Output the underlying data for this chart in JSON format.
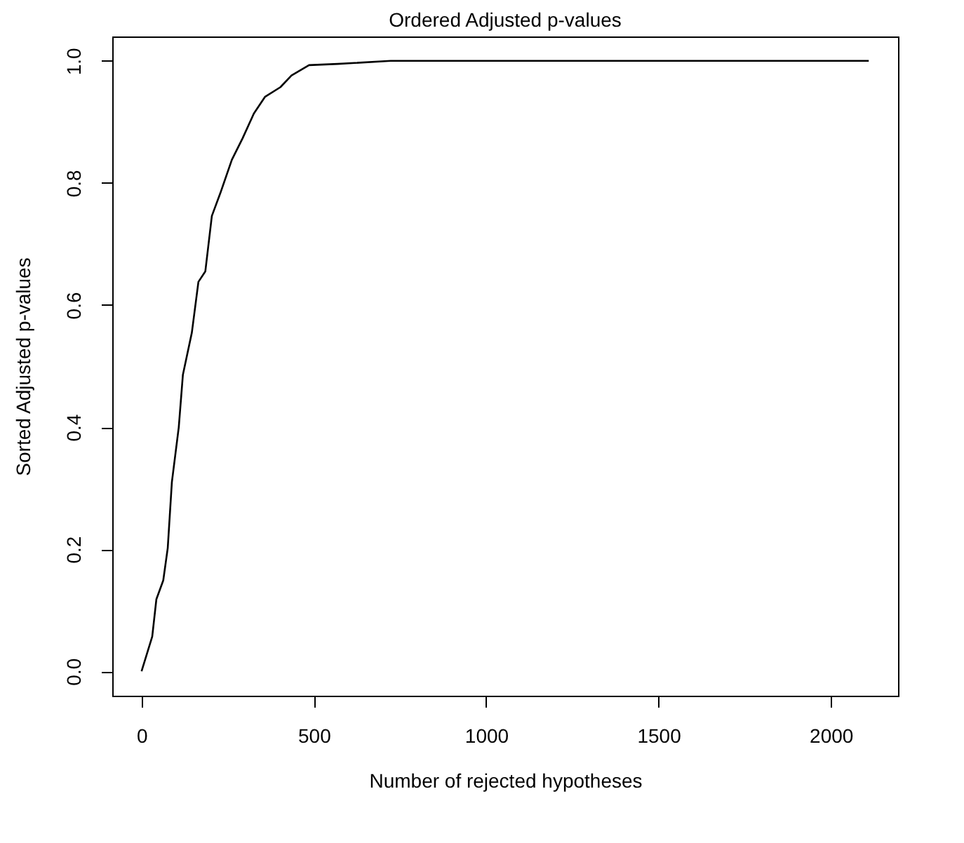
{
  "chart_data": {
    "type": "line",
    "title": "Ordered Adjusted p-values",
    "xlabel": "Number of rejected hypotheses",
    "ylabel": "Sorted Adjusted p-values",
    "series": [
      {
        "color": "#000000",
        "x": [
          0,
          31,
          43,
          63,
          76,
          88,
          108,
          120,
          146,
          165,
          185,
          204,
          229,
          262,
          293,
          326,
          358,
          403,
          435,
          486,
          569,
          723,
          2110
        ],
        "values": [
          0.0,
          0.057,
          0.118,
          0.149,
          0.202,
          0.31,
          0.4,
          0.486,
          0.555,
          0.638,
          0.655,
          0.746,
          0.784,
          0.838,
          0.873,
          0.914,
          0.941,
          0.957,
          0.976,
          0.993,
          0.995,
          1.0,
          1.0
        ]
      }
    ],
    "xlim": [
      -85,
      2195
    ],
    "ylim": [
      -0.04,
      1.04
    ],
    "xticks": [
      0,
      500,
      1000,
      1500,
      2000
    ],
    "yticks": [
      {
        "value": 0,
        "label": "0.0"
      },
      {
        "value": 0.2,
        "label": "0.2"
      },
      {
        "value": 0.4,
        "label": "0.4"
      },
      {
        "value": 0.6,
        "label": "0.6"
      },
      {
        "value": 0.8,
        "label": "0.8"
      },
      {
        "value": 1,
        "label": "1.0"
      }
    ],
    "grid": false,
    "marker": "none",
    "line_style": "solid"
  }
}
